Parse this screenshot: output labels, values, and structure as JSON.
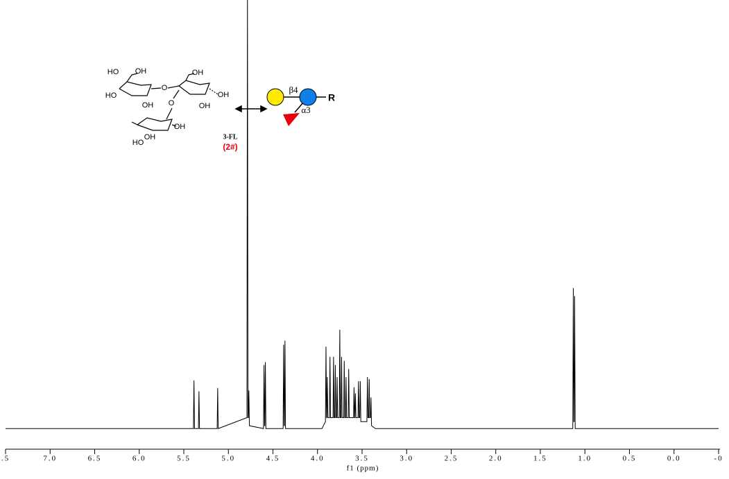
{
  "chart_data": {
    "type": "line",
    "x_label": "f1 (ppm)",
    "xlim": [
      7.5,
      -0.5
    ],
    "ylim": [
      0,
      103
    ],
    "xticks": [
      {
        "value": 7.5,
        "label": ".5"
      },
      {
        "value": 7,
        "label": "7.0"
      },
      6.5,
      {
        "value": 6,
        "label": "6.0"
      },
      5.5,
      {
        "value": 5,
        "label": "5.0"
      },
      4.5,
      {
        "value": 4,
        "label": "4.0"
      },
      3.5,
      {
        "value": 3,
        "label": "3.0"
      },
      2.5,
      {
        "value": 2,
        "label": "2.0"
      },
      1.5,
      {
        "value": 1,
        "label": "1.0"
      },
      0.5,
      {
        "value": 0,
        "label": "0.0"
      },
      {
        "value": -0.5,
        "label": "-0"
      }
    ],
    "color": "#000000",
    "x": [
      7.5,
      5.392,
      5.386,
      5.38,
      5.336,
      5.33,
      5.324,
      5.126,
      5.12,
      5.114,
      4.792,
      4.786,
      4.78,
      4.776,
      4.77,
      4.764,
      4.606,
      4.6,
      4.594,
      4.591,
      4.585,
      4.579,
      4.386,
      4.38,
      4.374,
      4.371,
      4.365,
      4.359,
      3.95,
      3.911,
      3.905,
      3.899,
      3.896,
      3.89,
      3.884,
      3.866,
      3.86,
      3.854,
      3.826,
      3.82,
      3.814,
      3.806,
      3.8,
      3.794,
      3.786,
      3.78,
      3.774,
      3.756,
      3.75,
      3.744,
      3.736,
      3.73,
      3.724,
      3.706,
      3.7,
      3.694,
      3.686,
      3.68,
      3.674,
      3.656,
      3.65,
      3.644,
      3.596,
      3.59,
      3.584,
      3.581,
      3.575,
      3.569,
      3.546,
      3.54,
      3.534,
      3.526,
      3.52,
      3.514,
      3.446,
      3.44,
      3.434,
      3.426,
      3.42,
      3.414,
      3.406,
      3.4,
      3.394,
      3.35,
      1.136,
      1.13,
      1.124,
      1.121,
      1.115,
      1.109,
      -0.5
    ],
    "values": [
      0.3,
      0.3,
      12.2,
      0.3,
      0.3,
      9.5,
      0.3,
      0.3,
      10.3,
      0.3,
      3,
      110,
      3,
      3,
      9.7,
      1,
      0.3,
      16,
      1,
      1,
      16.7,
      0.3,
      0.3,
      21,
      1,
      1,
      22,
      0.3,
      0.3,
      2,
      20.5,
      3,
      3,
      13,
      3,
      3,
      18,
      3,
      3,
      18,
      3,
      3,
      16,
      3,
      3,
      13,
      3,
      3,
      24.7,
      3,
      3,
      18,
      3,
      3,
      17,
      3,
      3,
      13,
      3,
      3,
      15,
      3,
      3,
      10.5,
      3,
      3,
      9,
      3,
      3,
      12,
      3,
      3,
      12,
      2,
      2,
      13,
      3,
      3,
      12.5,
      3,
      3,
      8,
      1,
      0.3,
      0.3,
      35,
      2,
      2,
      33,
      0.3,
      0.3
    ],
    "annotations": {
      "compound_label": "3-FL",
      "compound_number": "(2#)",
      "linkage_beta": "β4",
      "linkage_alpha": "α3",
      "reducing_end": "R",
      "structure_labels": [
        "HO",
        "OH",
        "OH",
        "HO",
        "OH",
        "O",
        "O",
        "OH",
        "OH",
        "OH",
        "HO",
        "OH"
      ]
    }
  }
}
